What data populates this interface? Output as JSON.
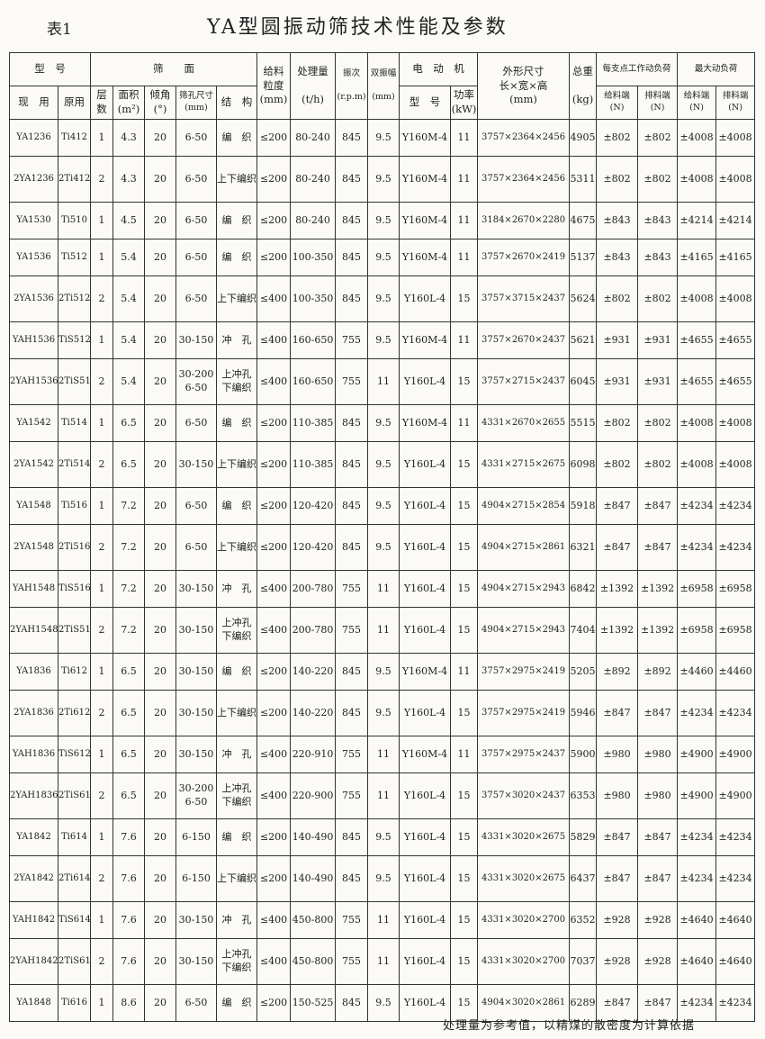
{
  "document": {
    "table_label": "表1",
    "title": "YA型圆振动筛技术性能及参数",
    "footnote": "处理量为参考值，以精煤的散密度为计算依据"
  },
  "headers": {
    "model_group": "型　号",
    "model_current": "现　用",
    "model_original": "原用",
    "screen_group": "筛　　面",
    "layers": "层\n数",
    "area": "面积\n(m²)",
    "angle": "倾角\n(°)",
    "aperture": "筛孔尺寸\n(mm)",
    "structure": "结　构",
    "feed_size": "给料\n粒度\n(mm)",
    "capacity": "处理量\n\n(t/h)",
    "frequency": "振次\n\n(r.p.m)",
    "amplitude": "双振幅\n\n(mm)",
    "motor_group": "电　动　机",
    "motor_model": "型　号",
    "motor_power": "功率\n(kW)",
    "dimensions": "外形尺寸\n长×宽×高\n(mm)",
    "weight": "总重\n\n(kg)",
    "work_load_group": "每支点工作动负荷",
    "max_load_group": "最大动负荷",
    "feed_end": "给料端\n(N)",
    "discharge_end": "排料端\n(N)"
  },
  "rows": [
    [
      "YA1236",
      "Ti412",
      "1",
      "4.3",
      "20",
      "6-50",
      "编　织",
      "≤200",
      "80-240",
      "845",
      "9.5",
      "Y160M-4",
      "11",
      "3757×2364×2456",
      "4905",
      "±802",
      "±802",
      "±4008",
      "±4008"
    ],
    [
      "2YA1236",
      "2Ti412",
      "2",
      "4.3",
      "20",
      "6-50",
      "上下编织",
      "≤200",
      "80-240",
      "845",
      "9.5",
      "Y160M-4",
      "11",
      "3757×2364×2456",
      "5311",
      "±802",
      "±802",
      "±4008",
      "±4008"
    ],
    [
      "YA1530",
      "Ti510",
      "1",
      "4.5",
      "20",
      "6-50",
      "编　织",
      "≤200",
      "80-240",
      "845",
      "9.5",
      "Y160M-4",
      "11",
      "3184×2670×2280",
      "4675",
      "±843",
      "±843",
      "±4214",
      "±4214"
    ],
    [
      "YA1536",
      "Ti512",
      "1",
      "5.4",
      "20",
      "6-50",
      "编　织",
      "≤200",
      "100-350",
      "845",
      "9.5",
      "Y160M-4",
      "11",
      "3757×2670×2419",
      "5137",
      "±843",
      "±843",
      "±4165",
      "±4165"
    ],
    [
      "2YA1536",
      "2Ti512",
      "2",
      "5.4",
      "20",
      "6-50",
      "上下编织",
      "≤400",
      "100-350",
      "845",
      "9.5",
      "Y160L-4",
      "15",
      "3757×3715×2437",
      "5624",
      "±802",
      "±802",
      "±4008",
      "±4008"
    ],
    [
      "YAH1536",
      "TiS512",
      "1",
      "5.4",
      "20",
      "30-150",
      "冲　孔",
      "≤400",
      "160-650",
      "755",
      "9.5",
      "Y160M-4",
      "11",
      "3757×2670×2437",
      "5621",
      "±931",
      "±931",
      "±4655",
      "±4655"
    ],
    [
      "2YAH1536",
      "2TiS512",
      "2",
      "5.4",
      "20",
      "30-200\n6-50",
      "上冲孔\n下编织",
      "≤400",
      "160-650",
      "755",
      "11",
      "Y160L-4",
      "15",
      "3757×2715×2437",
      "6045",
      "±931",
      "±931",
      "±4655",
      "±4655"
    ],
    [
      "YA1542",
      "Ti514",
      "1",
      "6.5",
      "20",
      "6-50",
      "编　织",
      "≤200",
      "110-385",
      "845",
      "9.5",
      "Y160M-4",
      "11",
      "4331×2670×2655",
      "5515",
      "±802",
      "±802",
      "±4008",
      "±4008"
    ],
    [
      "2YA1542",
      "2Ti514",
      "2",
      "6.5",
      "20",
      "30-150",
      "上下编织",
      "≤200",
      "110-385",
      "845",
      "9.5",
      "Y160L-4",
      "15",
      "4331×2715×2675",
      "6098",
      "±802",
      "±802",
      "±4008",
      "±4008"
    ],
    [
      "YA1548",
      "Ti516",
      "1",
      "7.2",
      "20",
      "6-50",
      "编　织",
      "≤200",
      "120-420",
      "845",
      "9.5",
      "Y160L-4",
      "15",
      "4904×2715×2854",
      "5918",
      "±847",
      "±847",
      "±4234",
      "±4234"
    ],
    [
      "2YA1548",
      "2Ti516",
      "2",
      "7.2",
      "20",
      "6-50",
      "上下编织",
      "≤200",
      "120-420",
      "845",
      "9.5",
      "Y160L-4",
      "15",
      "4904×2715×2861",
      "6321",
      "±847",
      "±847",
      "±4234",
      "±4234"
    ],
    [
      "YAH1548",
      "TiS516",
      "1",
      "7.2",
      "20",
      "30-150",
      "冲　孔",
      "≤400",
      "200-780",
      "755",
      "11",
      "Y160L-4",
      "15",
      "4904×2715×2943",
      "6842",
      "±1392",
      "±1392",
      "±6958",
      "±6958"
    ],
    [
      "2YAH1548",
      "2TiS516",
      "2",
      "7.2",
      "20",
      "30-150",
      "上冲孔\n下编织",
      "≤400",
      "200-780",
      "755",
      "11",
      "Y160L-4",
      "15",
      "4904×2715×2943",
      "7404",
      "±1392",
      "±1392",
      "±6958",
      "±6958"
    ],
    [
      "YA1836",
      "Ti612",
      "1",
      "6.5",
      "20",
      "30-150",
      "编　织",
      "≤200",
      "140-220",
      "845",
      "9.5",
      "Y160M-4",
      "11",
      "3757×2975×2419",
      "5205",
      "±892",
      "±892",
      "±4460",
      "±4460"
    ],
    [
      "2YA1836",
      "2Ti612",
      "2",
      "6.5",
      "20",
      "30-150",
      "上下编织",
      "≤200",
      "140-220",
      "845",
      "9.5",
      "Y160L-4",
      "15",
      "3757×2975×2419",
      "5946",
      "±847",
      "±847",
      "±4234",
      "±4234"
    ],
    [
      "YAH1836",
      "TiS612",
      "1",
      "6.5",
      "20",
      "30-150",
      "冲　孔",
      "≤400",
      "220-910",
      "755",
      "11",
      "Y160M-4",
      "11",
      "3757×2975×2437",
      "5900",
      "±980",
      "±980",
      "±4900",
      "±4900"
    ],
    [
      "2YAH1836",
      "2TiS612",
      "2",
      "6.5",
      "20",
      "30-200\n6-50",
      "上冲孔\n下编织",
      "≤400",
      "220-900",
      "755",
      "11",
      "Y160L-4",
      "15",
      "3757×3020×2437",
      "6353",
      "±980",
      "±980",
      "±4900",
      "±4900"
    ],
    [
      "YA1842",
      "Ti614",
      "1",
      "7.6",
      "20",
      "6-150",
      "编　织",
      "≤200",
      "140-490",
      "845",
      "9.5",
      "Y160L-4",
      "15",
      "4331×3020×2675",
      "5829",
      "±847",
      "±847",
      "±4234",
      "±4234"
    ],
    [
      "2YA1842",
      "2Ti614",
      "2",
      "7.6",
      "20",
      "6-150",
      "上下编织",
      "≤200",
      "140-490",
      "845",
      "9.5",
      "Y160L-4",
      "15",
      "4331×3020×2675",
      "6437",
      "±847",
      "±847",
      "±4234",
      "±4234"
    ],
    [
      "YAH1842",
      "TiS614",
      "1",
      "7.6",
      "20",
      "30-150",
      "冲　孔",
      "≤400",
      "450-800",
      "755",
      "11",
      "Y160L-4",
      "15",
      "4331×3020×2700",
      "6352",
      "±928",
      "±928",
      "±4640",
      "±4640"
    ],
    [
      "2YAH1842",
      "2TiS614",
      "2",
      "7.6",
      "20",
      "30-150",
      "上冲孔\n下编织",
      "≤400",
      "450-800",
      "755",
      "11",
      "Y160L-4",
      "15",
      "4331×3020×2700",
      "7037",
      "±928",
      "±928",
      "±4640",
      "±4640"
    ],
    [
      "YA1848",
      "Ti616",
      "1",
      "8.6",
      "20",
      "6-50",
      "编　织",
      "≤200",
      "150-525",
      "845",
      "9.5",
      "Y160L-4",
      "15",
      "4904×3020×2861",
      "6289",
      "±847",
      "±847",
      "±4234",
      "±4234"
    ]
  ]
}
